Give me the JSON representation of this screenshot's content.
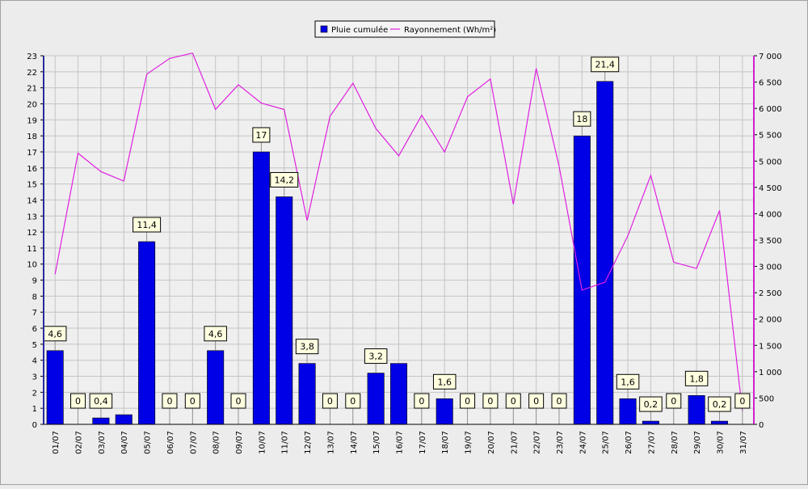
{
  "chart_data": {
    "type": "bar",
    "categories": [
      "01/07",
      "02/07",
      "03/07",
      "04/07",
      "05/07",
      "06/07",
      "07/07",
      "08/07",
      "09/07",
      "10/07",
      "11/07",
      "12/07",
      "13/07",
      "14/07",
      "15/07",
      "16/07",
      "17/07",
      "18/07",
      "19/07",
      "20/07",
      "21/07",
      "22/07",
      "23/07",
      "24/07",
      "25/07",
      "26/07",
      "27/07",
      "28/07",
      "29/07",
      "30/07",
      "31/07"
    ],
    "series": [
      {
        "name": "Pluie cumulée",
        "kind": "bar",
        "axis": "left",
        "color": "#0000e6",
        "values": [
          4.6,
          0,
          0.4,
          0.6,
          11.4,
          0,
          0,
          4.6,
          0,
          17,
          14.2,
          3.8,
          0,
          0,
          3.2,
          3.8,
          0,
          1.6,
          0,
          0,
          0,
          0,
          0,
          18,
          21.4,
          1.6,
          0.2,
          0,
          1.8,
          0.2,
          0
        ],
        "labels": [
          "4,6",
          "0",
          "0,4",
          "",
          "11,4",
          "0",
          "0",
          "4,6",
          "0",
          "17",
          "14,2",
          "3,8",
          "0",
          "0",
          "3,2",
          "",
          "0",
          "1,6",
          "0",
          "0",
          "0",
          "0",
          "0",
          "18",
          "21,4",
          "1,6",
          "0,2",
          "0",
          "1,8",
          "0,2",
          "0"
        ]
      },
      {
        "name": "Rayonnement (Wh/m²)",
        "kind": "line",
        "axis": "right",
        "color": "#e020e0",
        "values": [
          2850,
          5150,
          4800,
          4620,
          6650,
          6950,
          7050,
          5980,
          6450,
          6100,
          5980,
          3870,
          5850,
          6480,
          5620,
          5100,
          5870,
          5170,
          6220,
          6560,
          4180,
          6760,
          4900,
          2550,
          2700,
          3580,
          4730,
          3080,
          2960,
          4060,
          250
        ]
      }
    ],
    "y_left": {
      "min": 0,
      "max": 23,
      "ticks": [
        "0",
        "1",
        "2",
        "3",
        "4",
        "5",
        "6",
        "7",
        "8",
        "9",
        "10",
        "11",
        "12",
        "13",
        "14",
        "15",
        "16",
        "17",
        "18",
        "19",
        "20",
        "21",
        "22",
        "23"
      ]
    },
    "y_right": {
      "min": 0,
      "max": 7000,
      "ticks": [
        "0",
        "500",
        "1 000",
        "1 500",
        "2 000",
        "2 500",
        "3 000",
        "3 500",
        "4 000",
        "4 500",
        "5 000",
        "5 500",
        "6 000",
        "6 500",
        "7 000"
      ]
    },
    "grid": true,
    "legend": "top-center"
  }
}
